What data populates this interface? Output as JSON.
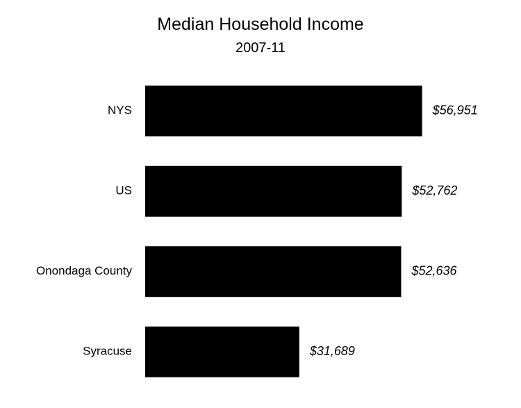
{
  "chart_data": {
    "type": "bar",
    "orientation": "horizontal",
    "title": "Median Household Income",
    "subtitle": "2007-11",
    "categories": [
      "NYS",
      "US",
      "Onondaga County",
      "Syracuse"
    ],
    "values": [
      56951,
      52762,
      52636,
      31689
    ],
    "data_labels": [
      "$56,951",
      "$52,762",
      "$52,636",
      "$31,689"
    ],
    "xlim": [
      0,
      57000
    ],
    "grid": false,
    "legend": "none",
    "bar_color": "#000000"
  }
}
